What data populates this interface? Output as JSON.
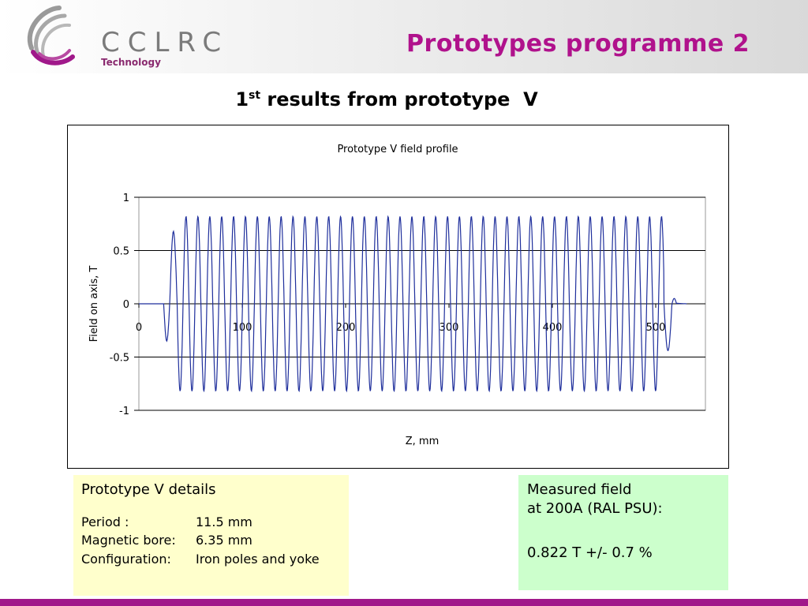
{
  "header": {
    "logo_text": "CCLRC",
    "logo_subtext": "Technology",
    "slide_title": "Prototypes programme 2",
    "brand_color": "#a0188a"
  },
  "subtitle": {
    "prefix": "1",
    "superscript": "st",
    "rest": " results from prototype  V"
  },
  "chart_data": {
    "type": "line",
    "title": "Prototype V field profile",
    "xlabel": "Z, mm",
    "ylabel": "Field on axis, T",
    "xlim": [
      0,
      550
    ],
    "ylim": [
      -1,
      1
    ],
    "x_ticks": [
      "0",
      "100",
      "200",
      "300",
      "400",
      "500"
    ],
    "y_ticks": [
      "1",
      "0.5",
      "0",
      "-0.5",
      "-1"
    ],
    "grid": true,
    "legend": "none",
    "line_color": "#1f2f9c",
    "series": [
      {
        "period_mm": 11.5,
        "start_x": 0,
        "end_x": 530,
        "flat_until_x": 24,
        "oscillation_start_x": 35,
        "oscillation_end_x": 508,
        "main_amplitude": 0.82,
        "end_tail_peak": 0.05,
        "points": [
          [
            0,
            0
          ],
          [
            24,
            0
          ],
          [
            27,
            -0.05
          ],
          [
            30,
            -0.25
          ],
          [
            31,
            -0.02
          ],
          [
            33,
            0.4
          ],
          [
            35,
            0.68
          ],
          [
            37,
            0.67
          ],
          [
            40,
            -0.02
          ],
          [
            43,
            -0.8
          ],
          [
            46,
            -0.02
          ],
          [
            49,
            0.82
          ],
          [
            52,
            -0.02
          ],
          [
            55,
            -0.8
          ],
          [
            508,
            -0.8
          ],
          [
            511,
            0.3
          ],
          [
            514,
            0.05
          ],
          [
            516,
            -0.38
          ],
          [
            518,
            -0.44
          ],
          [
            520,
            0.05
          ],
          [
            522,
            0.06
          ],
          [
            525,
            0.02
          ],
          [
            530,
            0
          ]
        ]
      }
    ]
  },
  "details": {
    "heading": "Prototype V details",
    "rows": [
      {
        "label": "Period :",
        "value": "11.5 mm"
      },
      {
        "label": "Magnetic bore:",
        "value": "6.35 mm"
      },
      {
        "label": "Configuration:",
        "value": "Iron poles and yoke"
      }
    ]
  },
  "measured": {
    "line1": "Measured field",
    "line2": "at 200A (RAL PSU):",
    "line3": "0.822 T +/- 0.7 %"
  }
}
